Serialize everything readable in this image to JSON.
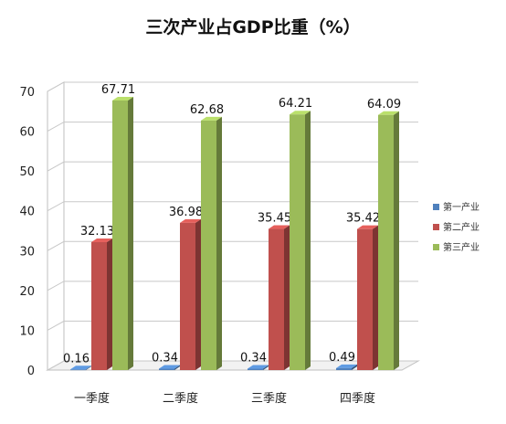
{
  "chart_data": {
    "type": "bar",
    "title": "三次产业占GDP比重（%）",
    "categories": [
      "一季度",
      "二季度",
      "三季度",
      "四季度"
    ],
    "series": [
      {
        "name": "第一产业",
        "values": [
          0.16,
          0.34,
          0.34,
          0.49
        ],
        "labels": [
          "0.16",
          "0.34",
          "0.34",
          "0.49"
        ],
        "color": "#4f81bd"
      },
      {
        "name": "第二产业",
        "values": [
          32.13,
          36.98,
          35.45,
          35.42
        ],
        "labels": [
          "32.13",
          "36.98",
          "35.45",
          "35.42"
        ],
        "color": "#c0504d"
      },
      {
        "name": "第三产业",
        "values": [
          67.71,
          62.68,
          64.21,
          64.09
        ],
        "labels": [
          "67.71",
          "62.68",
          "64.21",
          "64.09"
        ],
        "color": "#9bbb59"
      }
    ],
    "ylim": [
      0,
      70
    ],
    "yticks": [
      "0",
      "10",
      "20",
      "30",
      "40",
      "50",
      "60",
      "70"
    ],
    "grid": true,
    "legend_position": "right",
    "style": "3d-bar"
  }
}
